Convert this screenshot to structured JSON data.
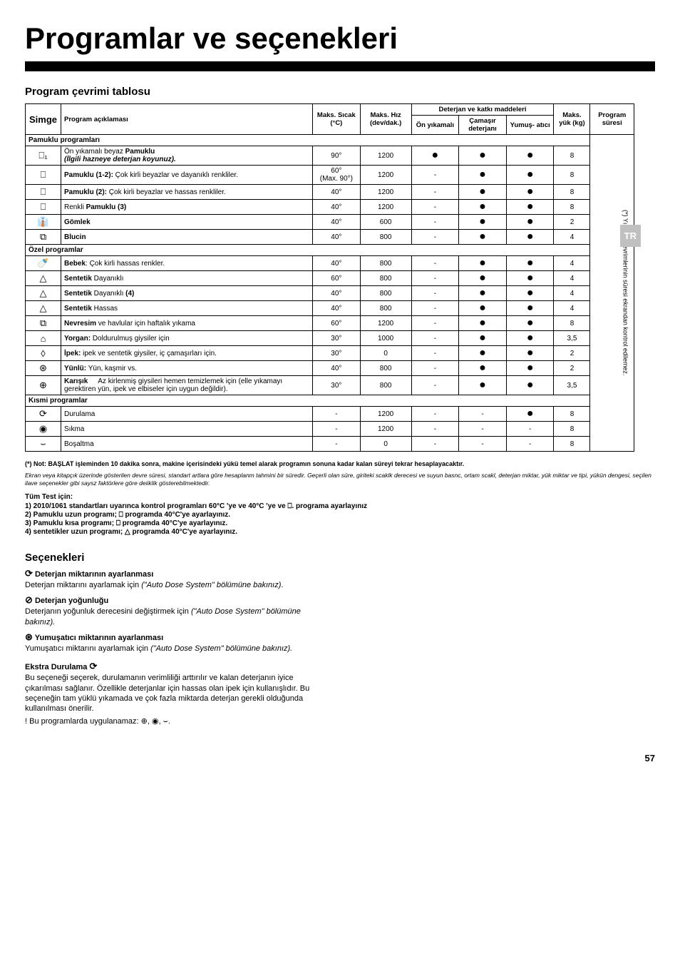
{
  "title": "Programlar ve seçenekleri",
  "subtitle": "Program çevrimi tablosu",
  "tr_badge": "TR",
  "headers": {
    "simge": "Simge",
    "program": "Program açıklaması",
    "temp_main": "Maks. Sıcak (°C)",
    "speed_main": "Maks. Hız (dev/dak.)",
    "detergents_group": "Deterjan ve katkı maddeleri",
    "prewash": "Ön yıkamalı",
    "detergent": "Çamaşır deterjanı",
    "softener": "Yumuş- atıcı",
    "load_main": "Maks. yük (kg)",
    "duration_main": "Program süresi"
  },
  "sections": {
    "cotton": "Pamuklu programları",
    "special": "Özel programlar",
    "partial": "Kısmi programlar"
  },
  "rows": [
    {
      "section": "cotton"
    },
    {
      "icon": "⎕₁",
      "name_html": "Ön yıkamalı beyaz <b>Pamuklu</b><br><i><b>(İlgili hazneye deterjan koyunuz).</b></i>",
      "temp": "90°",
      "speed": "1200",
      "pre": "●",
      "det": "●",
      "soft": "●",
      "load": "8"
    },
    {
      "icon": "⎕",
      "name_html": "<b>Pamuklu (1-2):</b> Çok kirli beyazlar ve dayanıklı renkliler.",
      "temp": "60°<br>(Max. 90°)",
      "speed": "1200",
      "pre": "-",
      "det": "●",
      "soft": "●",
      "load": "8"
    },
    {
      "icon": "⎕",
      "name_html": "<b>Pamuklu (2):</b> Çok kirli beyazlar ve hassas renkliler.",
      "temp": "40°",
      "speed": "1200",
      "pre": "-",
      "det": "●",
      "soft": "●",
      "load": "8"
    },
    {
      "icon": "⎕",
      "name_html": "Renkli <b>Pamuklu (3)</b>",
      "temp": "40°",
      "speed": "1200",
      "pre": "-",
      "det": "●",
      "soft": "●",
      "load": "8"
    },
    {
      "icon": "👔",
      "name_html": "<b>Gömlek</b>",
      "temp": "40°",
      "speed": "600",
      "pre": "-",
      "det": "●",
      "soft": "●",
      "load": "2"
    },
    {
      "icon": "⧉",
      "name_html": "<b>Blucin</b>",
      "temp": "40°",
      "speed": "800",
      "pre": "-",
      "det": "●",
      "soft": "●",
      "load": "4"
    },
    {
      "section": "special"
    },
    {
      "icon": "🍼",
      "name_html": "<b>Bebek</b>: Çok kirli hassas renkler.",
      "temp": "40°",
      "speed": "800",
      "pre": "-",
      "det": "●",
      "soft": "●",
      "load": "4"
    },
    {
      "icon": "△",
      "name_html": "<b>Sentetik</b> Dayanıklı",
      "temp": "60°",
      "speed": "800",
      "pre": "-",
      "det": "●",
      "soft": "●",
      "load": "4"
    },
    {
      "icon": "△",
      "name_html": "<b>Sentetik</b> Dayanıklı <b>(4)</b>",
      "temp": "40°",
      "speed": "800",
      "pre": "-",
      "det": "●",
      "soft": "●",
      "load": "4"
    },
    {
      "icon": "△",
      "name_html": "<b>Sentetik</b> Hassas",
      "temp": "40°",
      "speed": "800",
      "pre": "-",
      "det": "●",
      "soft": "●",
      "load": "4"
    },
    {
      "icon": "⧉",
      "name_html": "<b>Nevresim</b> ve havlular için haftalık yıkama",
      "temp": "60°",
      "speed": "1200",
      "pre": "-",
      "det": "●",
      "soft": "●",
      "load": "8"
    },
    {
      "icon": "⌂",
      "name_html": "<b>Yorgan:</b> Doldurulmuş giysiler için",
      "temp": "30°",
      "speed": "1000",
      "pre": "-",
      "det": "●",
      "soft": "●",
      "load": "3,5"
    },
    {
      "icon": "◊",
      "name_html": "<b>İpek:</b> ipek ve sentetik giysiler, iç çamaşırları için.",
      "temp": "30°",
      "speed": "0",
      "pre": "-",
      "det": "●",
      "soft": "●",
      "load": "2"
    },
    {
      "icon": "⊛",
      "name_html": "<b>Yünlü:</b> Yün, kaşmir vs.",
      "temp": "40°",
      "speed": "800",
      "pre": "-",
      "det": "●",
      "soft": "●",
      "load": "2"
    },
    {
      "icon": "⊕",
      "name_html": "<b>Karışık</b>&nbsp;&nbsp;&nbsp;&nbsp;&nbsp;Az kirlenmiş giysileri hemen temizlemek için (elle yıkamayı gerektiren yün, ipek ve elbiseler için uygun değildir).",
      "temp": "30°",
      "speed": "800",
      "pre": "-",
      "det": "●",
      "soft": "●",
      "load": "3,5"
    },
    {
      "section": "partial"
    },
    {
      "icon": "⟳",
      "name_html": "Durulama",
      "temp": "-",
      "speed": "1200",
      "pre": "-",
      "det": "-",
      "soft": "●",
      "load": "8"
    },
    {
      "icon": "◉",
      "name_html": "Sıkma",
      "temp": "-",
      "speed": "1200",
      "pre": "-",
      "det": "-",
      "soft": "-",
      "load": "8"
    },
    {
      "icon": "⌣",
      "name_html": "Boşaltma",
      "temp": "-",
      "speed": "0",
      "pre": "-",
      "det": "-",
      "soft": "-",
      "load": "8"
    }
  ],
  "duration_note": "(*) Yıkama çevrimlerinin süresi ekrandan kontrol edilemez.",
  "footnote": "(*) Not: BAŞLAT işleminden 10 dakika sonra, makine içerisindeki yükü temel alarak programın sonuna kadar kalan süreyi tekrar hesaplayacaktır.",
  "small_italic": "Ekran veya kitapçık üzerinde gösterilen devre süresi, standart artlara göre hesaplanm tahmini bir süredir. Geçerli olan süre, giriteki scaklk derecesi ve suyun basnc, ortam scakl, deterjan miktar, yük miktar ve tipi, yükün dengesi, seçilen ilave seçenekler gibi saysz faktörlere göre deiiklik gösterebilmektedir.",
  "test": {
    "heading": "Tüm Test          için:",
    "line1": "1) 2010/1061 standartları uyarınca kontrol programları 60°C 'ye ve 40°C 'ye ve ⎕. programa ayarlayınız",
    "line2": "2) Pamuklu uzun programı; ⎕ programda 40°C'ye ayarlayınız.",
    "line3": "3) Pamuklu kısa programı; ⎕ programda 40°C'ye ayarlayınız.",
    "line4": "4) sentetikler uzun programı; △ programda 40°C'ye ayarlayınız."
  },
  "options_title": "Seçenekleri",
  "options": [
    {
      "icon": "⟳",
      "title": "Deterjan miktarının ayarlanması",
      "body": "Deterjan miktarını ayarlamak için <span class='italic'>(\"Auto Dose System\" bölümüne bakınız)</span>."
    },
    {
      "icon": "⊘",
      "title": "Deterjan yoğunluğu",
      "body": "Deterjanın yoğunluk derecesini değiştirmek için <span class='italic'>(\"Auto Dose System\" bölümüne bakınız).</span>"
    },
    {
      "icon": "⊛",
      "title": "Yumuşatıcı miktarının ayarlanması",
      "body": "Yumuşatıcı miktarını ayarlamak için <span class='italic'>(\"Auto Dose System\" bölümüne bakınız).</span>"
    }
  ],
  "extra": {
    "title": "Ekstra Durulama",
    "icon": "⟳",
    "body": "Bu seçeneği seçerek, durulamanın verimliliği arttırılır ve kalan deterjanın iyice çıkarılması sağlanır. Özellikle deterjanlar için hassas olan ipek için kullanışlıdır. Bu seçeneğin tam yüklü yıkamada ve çok fazla miktarda deterjan gerekli olduğunda kullanılması önerilir.",
    "note": "! Bu programlarda uygulanamaz: ⊕, ◉, ⌣."
  },
  "pagenum": "57"
}
